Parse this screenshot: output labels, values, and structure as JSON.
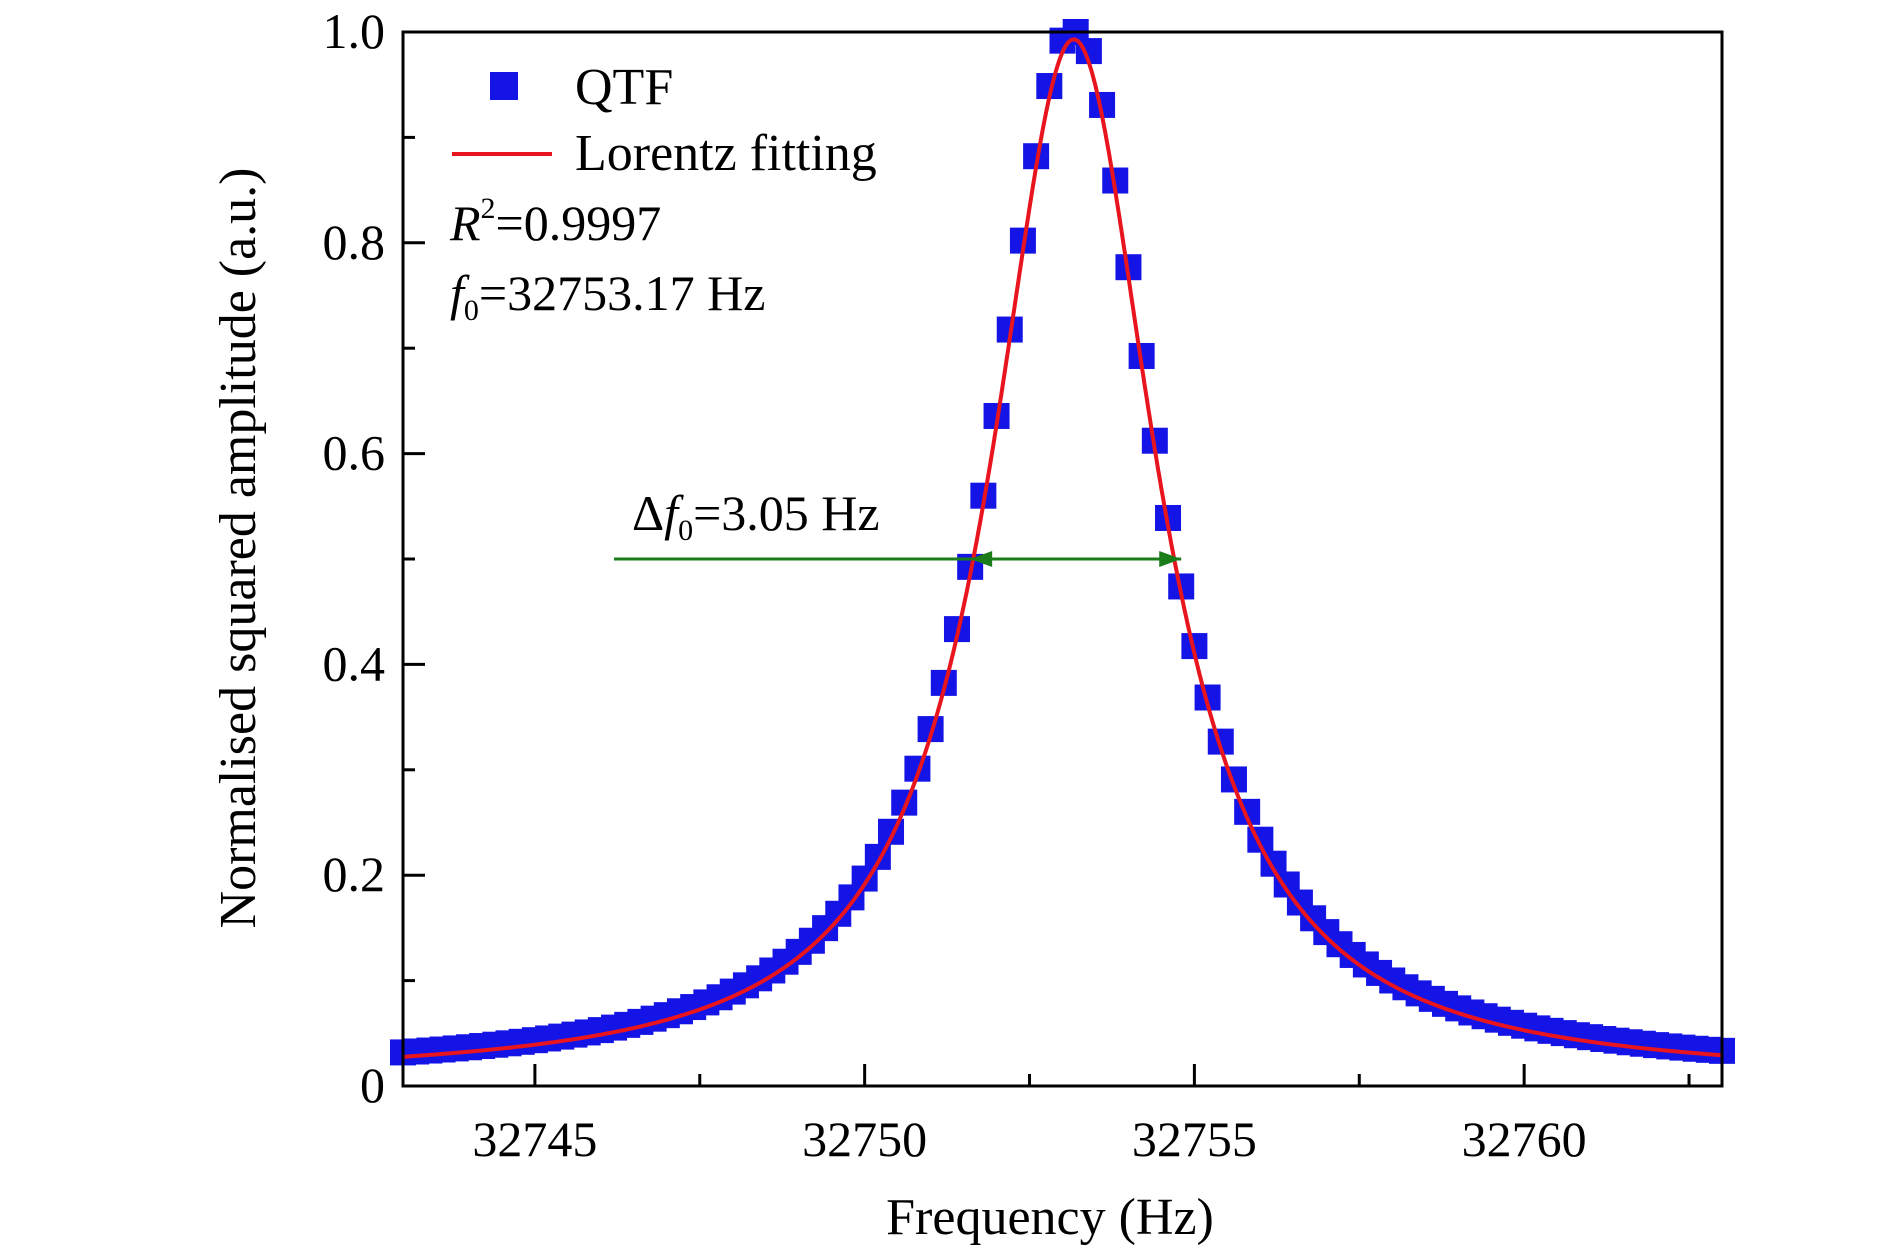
{
  "chart_data": {
    "type": "scatter",
    "xlabel": "Frequency (Hz)",
    "ylabel": "Normalised squared amplitude (a.u.)",
    "xlim": [
      32743.0,
      32763.0
    ],
    "ylim": [
      0,
      1.0
    ],
    "x_ticks": [
      "32745",
      "32750",
      "32755",
      "32760"
    ],
    "x_tick_values": [
      32745,
      32750,
      32755,
      32760
    ],
    "y_ticks": [
      "0",
      "0.2",
      "0.4",
      "0.6",
      "0.8",
      "1.0"
    ],
    "y_tick_values": [
      0,
      0.2,
      0.4,
      0.6,
      0.8,
      1.0
    ],
    "grid": false,
    "legend_position": "top-left",
    "series": [
      {
        "name": "QTF",
        "kind": "scatter",
        "marker": "square",
        "color": "#1414e6",
        "x_start": 32743.0,
        "x_end": 32763.0,
        "x_step": 0.2,
        "center": 32753.17,
        "fwhm": 3.05,
        "peak": 1.0,
        "offset": 0.006
      },
      {
        "name": "Lorentz fitting",
        "kind": "line",
        "color": "#e8141e",
        "center": 32753.17,
        "fwhm": 3.05,
        "peak": 0.993
      }
    ],
    "annotations": {
      "r2_symbol": "R",
      "r2_sup": "2",
      "r2_value": "=0.9997",
      "f0_symbol": "f",
      "f0_sub": "0",
      "f0_value": "=32753.17 Hz",
      "df_delta": "Δ",
      "df_symbol": "f",
      "df_sub": "0",
      "df_value": "=3.05 Hz",
      "fwhm_arrow": {
        "x_start": 32746.2,
        "x_left": 32751.6,
        "x_right": 32754.8,
        "y": 0.5,
        "color": "#1a7d1a"
      }
    }
  }
}
